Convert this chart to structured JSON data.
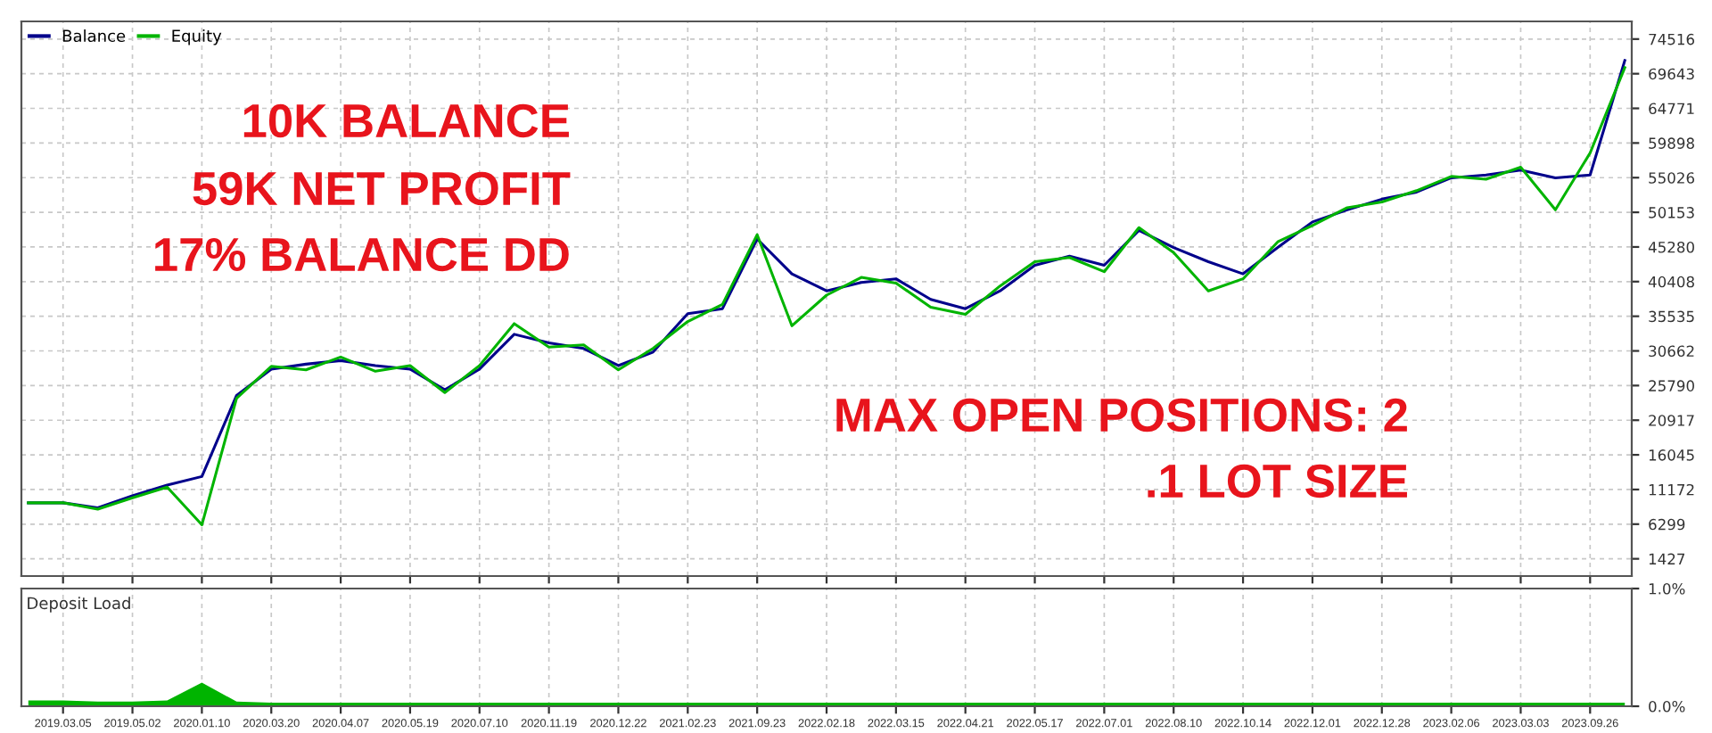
{
  "chart_data": [
    {
      "type": "line",
      "legend": "top left",
      "grid": true,
      "tick_labels": "y",
      "annotations": [
        "10K BALANCE",
        "59K NET PROFIT",
        "17% BALANCE DD",
        "MAX OPEN POSITIONS: 2",
        ".1 LOT SIZE"
      ],
      "categories": [
        null,
        "2019.03.05",
        null,
        "2019.05.02",
        null,
        "2020.01.10",
        null,
        "2020.03.20",
        null,
        "2020.04.07",
        null,
        "2020.05.19",
        null,
        "2020.07.10",
        null,
        "2020.11.19",
        null,
        "2020.12.22",
        null,
        "2021.02.23",
        null,
        "2021.09.23",
        null,
        "2022.02.18",
        null,
        "2022.03.15",
        null,
        "2022.04.21",
        null,
        "2022.05.17",
        null,
        "2022.07.01",
        null,
        "2022.08.10",
        null,
        "2022.10.14",
        null,
        "2022.12.01",
        null,
        "2022.12.28",
        null,
        "2023.02.06",
        null,
        "2023.03.03",
        null,
        "2023.09.26",
        null
      ],
      "ylim": [
        -1000,
        77000
      ],
      "yticks": [
        1427,
        6299,
        11172,
        16045,
        20917,
        25790,
        30662,
        35535,
        40408,
        45280,
        50153,
        55026,
        59898,
        64771,
        69643,
        74516
      ],
      "series": [
        {
          "name": "Balance",
          "color": "#00008b",
          "values": [
            9300,
            9300,
            8600,
            10300,
            11800,
            13000,
            24400,
            28100,
            28800,
            29300,
            28600,
            28100,
            25200,
            28100,
            33000,
            31800,
            31000,
            28600,
            30500,
            35900,
            36600,
            46400,
            41500,
            39100,
            40300,
            40800,
            37900,
            36600,
            39100,
            42700,
            44000,
            42700,
            47600,
            45200,
            43200,
            41500,
            45200,
            48800,
            50500,
            52000,
            53000,
            55000,
            55400,
            56100,
            55000,
            55400,
            71500
          ]
        },
        {
          "name": "Equity",
          "color": "#00b400",
          "values": [
            9300,
            9300,
            8400,
            10000,
            11500,
            6200,
            24000,
            28500,
            28000,
            29800,
            27800,
            28600,
            24800,
            28600,
            34500,
            31200,
            31500,
            28000,
            31000,
            34800,
            37200,
            47000,
            34200,
            38500,
            41000,
            40200,
            36800,
            35800,
            39800,
            43200,
            43800,
            41800,
            48000,
            44500,
            39100,
            40800,
            46000,
            48300,
            50800,
            51600,
            53200,
            55200,
            54800,
            56500,
            50500,
            58500,
            70500
          ]
        }
      ]
    },
    {
      "type": "area",
      "title": "Deposit Load",
      "grid": true,
      "categories": [
        null,
        "2019.03.05",
        null,
        "2019.05.02",
        null,
        "2020.01.10",
        null,
        "2020.03.20",
        null,
        "2020.04.07",
        null,
        "2020.05.19",
        null,
        "2020.07.10",
        null,
        "2020.11.19",
        null,
        "2020.12.22",
        null,
        "2021.02.23",
        null,
        "2021.09.23",
        null,
        "2022.02.18",
        null,
        "2022.03.15",
        null,
        "2022.04.21",
        null,
        "2022.05.17",
        null,
        "2022.07.01",
        null,
        "2022.08.10",
        null,
        "2022.10.14",
        null,
        "2022.12.01",
        null,
        "2022.12.28",
        null,
        "2023.02.06",
        null,
        "2023.03.03",
        null,
        "2023.09.26",
        null
      ],
      "ylim": [
        0,
        1
      ],
      "yticks": [
        {
          "value": 0,
          "label": "0.0%"
        },
        {
          "value": 1,
          "label": "1.0%"
        }
      ],
      "series": [
        {
          "color": "#00b400",
          "values": [
            0.05,
            0.05,
            0.04,
            0.04,
            0.05,
            0.2,
            0.04,
            0.03,
            0.03,
            0.03,
            0.03,
            0.03,
            0.03,
            0.03,
            0.03,
            0.03,
            0.03,
            0.03,
            0.03,
            0.03,
            0.03,
            0.03,
            0.03,
            0.03,
            0.03,
            0.03,
            0.03,
            0.03,
            0.03,
            0.03,
            0.03,
            0.03,
            0.03,
            0.03,
            0.03,
            0.03,
            0.03,
            0.03,
            0.03,
            0.03,
            0.03,
            0.03,
            0.03,
            0.03,
            0.03,
            0.03,
            0.03
          ]
        }
      ]
    }
  ]
}
